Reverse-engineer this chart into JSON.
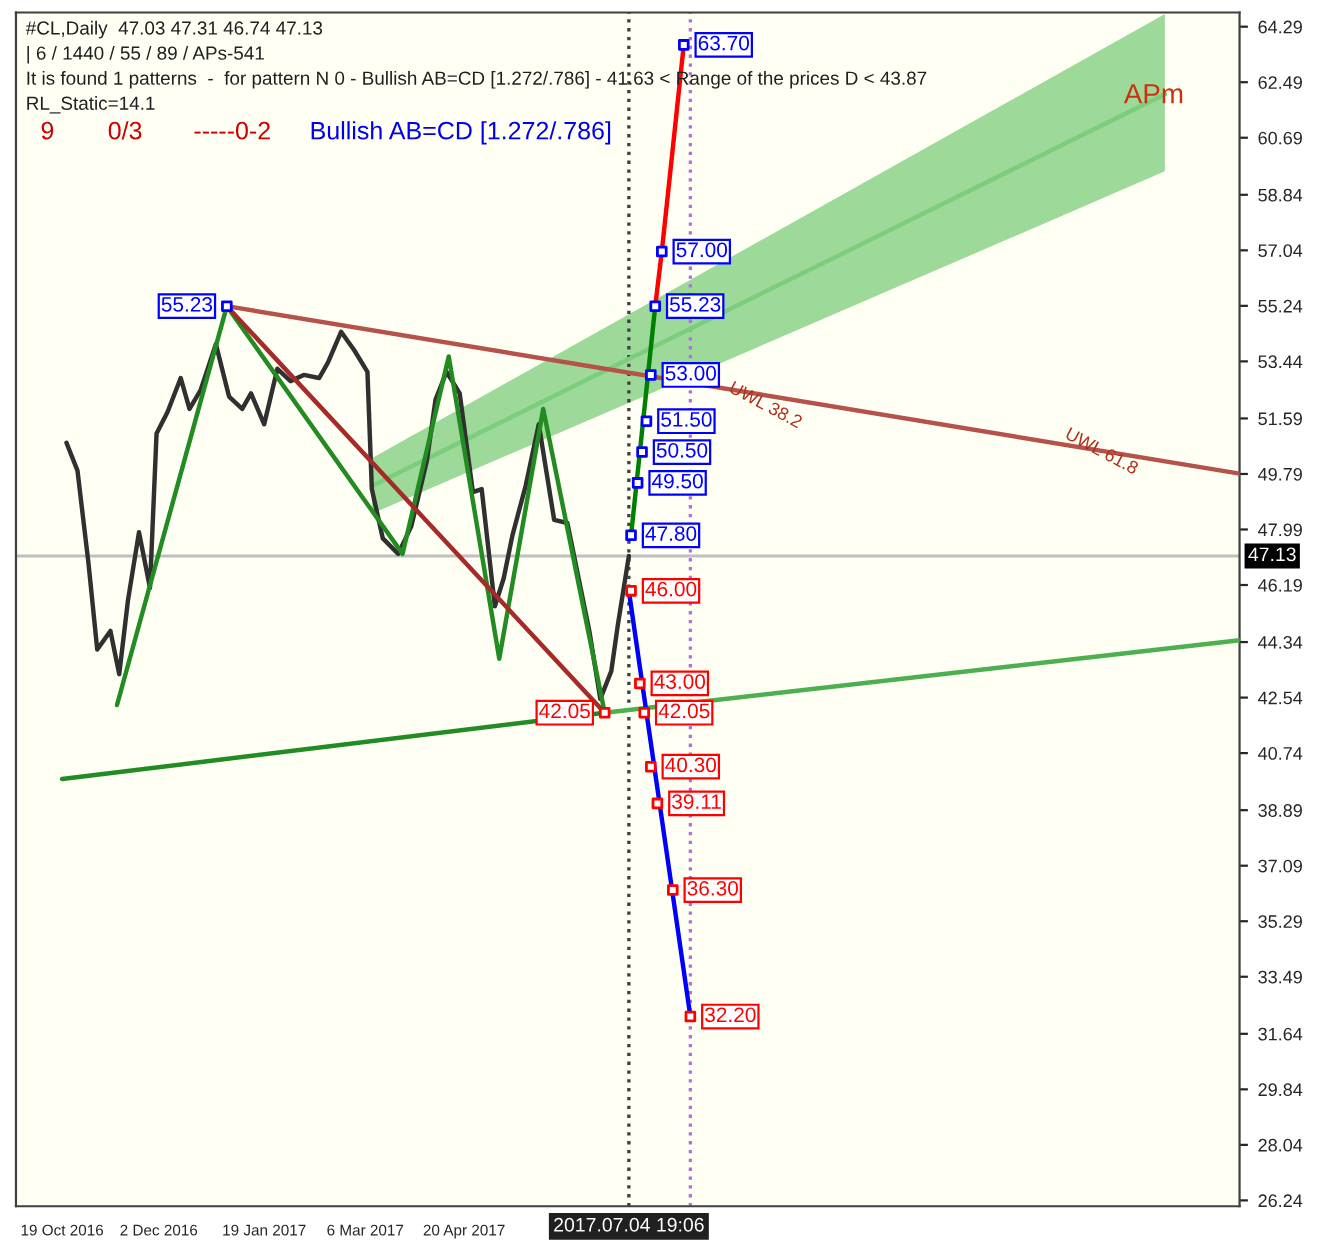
{
  "chart_data": {
    "type": "line",
    "annotations": [
      "#CL,Daily  47.03 47.31 46.74 47.13",
      "| 6 / 1440 / 55 / 89 / APs-541",
      "It is found 1 patterns  -  for pattern N 0 - Bullish AB=CD [1.272/.786] - 41.63 < Range of the prices D < 43.87",
      "RL_Static=14.1",
      "9",
      "0/3",
      "-----0-2",
      "Bullish AB=CD [1.272/.786]",
      "APm",
      {
        "text": "UWL 38.2",
        "x": "2017-09-04",
        "y": 52.0
      },
      {
        "text": "UWL 61.8",
        "x": "2018-02-04",
        "y": 50.5
      }
    ],
    "xlim": [
      "2016-09-28",
      "2018-04-08"
    ],
    "xticks": [
      {
        "value": "2016-10-19",
        "label": "19 Oct 2016"
      },
      {
        "value": "2016-12-02",
        "label": "2 Dec 2016"
      },
      {
        "value": "2017-01-19",
        "label": "19 Jan 2017"
      },
      {
        "value": "2017-03-06",
        "label": "6 Mar 2017"
      },
      {
        "value": "2017-04-20",
        "label": "20 Apr 2017"
      }
    ],
    "ylim": [
      26.05,
      64.75
    ],
    "yticks": [
      26.24,
      28.04,
      29.84,
      31.64,
      33.49,
      35.29,
      37.09,
      38.89,
      40.74,
      42.54,
      44.34,
      46.19,
      47.99,
      49.79,
      51.59,
      53.44,
      55.24,
      57.04,
      58.84,
      60.69,
      62.49,
      64.29
    ],
    "grid": false,
    "marker": "none",
    "line_style": "solid",
    "ref_lines": [
      {
        "axis": "y",
        "value": 47.13,
        "label": "47.13",
        "color": "#c0c0c0",
        "line_style": "solid"
      },
      {
        "axis": "x",
        "value": "2017-07-04",
        "label": "2017.07.04 19:06",
        "color": "#404040",
        "line_style": "dotted"
      },
      {
        "axis": "x",
        "value": "2017-08-01",
        "color": "#b070e0",
        "line_style": "dotted"
      }
    ],
    "series": [
      {
        "color": "#7ccd7c",
        "x": [
          "2017-03-09",
          "2018-03-05"
        ],
        "values": [
          49.4,
          62.1
        ],
        "lower": [
          48.5,
          59.6
        ],
        "upper": [
          50.3,
          64.7
        ]
      },
      {
        "color": "#303030",
        "x": [
          "2016-10-21",
          "2016-10-26",
          "2016-10-31",
          "2016-11-04",
          "2016-11-10",
          "2016-11-14",
          "2016-11-18",
          "2016-11-23",
          "2016-11-28",
          "2016-12-01",
          "2016-12-06",
          "2016-12-12",
          "2016-12-16",
          "2016-12-21",
          "2016-12-28",
          "2017-01-03",
          "2017-01-09",
          "2017-01-13",
          "2017-01-19",
          "2017-01-25",
          "2017-01-31",
          "2017-02-06",
          "2017-02-13",
          "2017-02-17",
          "2017-02-23",
          "2017-03-01",
          "2017-03-07",
          "2017-03-09",
          "2017-03-14",
          "2017-03-21",
          "2017-03-27",
          "2017-04-03",
          "2017-04-07",
          "2017-04-12",
          "2017-04-18",
          "2017-04-24",
          "2017-04-28",
          "2017-05-04",
          "2017-05-08",
          "2017-05-12",
          "2017-05-18",
          "2017-05-24",
          "2017-05-31",
          "2017-06-06",
          "2017-06-12",
          "2017-06-16",
          "2017-06-21",
          "2017-06-26",
          "2017-06-29",
          "2017-07-04"
        ],
        "values": [
          50.8,
          49.9,
          46.9,
          44.1,
          44.7,
          43.3,
          45.7,
          47.9,
          46.1,
          51.1,
          51.8,
          52.9,
          51.9,
          52.5,
          54.0,
          52.3,
          51.9,
          52.4,
          51.4,
          53.2,
          52.8,
          53.0,
          52.9,
          53.4,
          54.4,
          53.8,
          53.1,
          49.3,
          47.7,
          47.2,
          48.1,
          50.2,
          52.2,
          53.1,
          52.4,
          49.2,
          49.3,
          45.5,
          46.4,
          47.8,
          49.4,
          51.4,
          48.3,
          48.2,
          46.1,
          44.7,
          42.5,
          43.4,
          44.9,
          47.13
        ]
      },
      {
        "color": "#228b22",
        "x": [
          "2016-11-13",
          "2017-01-02",
          "2017-03-23",
          "2017-04-13",
          "2017-05-06",
          "2017-05-26",
          "2017-06-23"
        ],
        "values": [
          42.3,
          55.23,
          47.2,
          53.6,
          43.8,
          51.9,
          42.05
        ]
      },
      {
        "color": "#a52a2a",
        "x": [
          "2017-01-02",
          "2017-06-23"
        ],
        "values": [
          55.23,
          42.05
        ]
      },
      {
        "color": "#b5524a",
        "x": [
          "2017-01-02",
          "2018-04-08"
        ],
        "values": [
          55.23,
          49.8
        ]
      },
      {
        "color": "#228b22",
        "x": [
          "2016-10-19",
          "2017-06-23"
        ],
        "values": [
          39.9,
          42.05
        ]
      },
      {
        "color": "#4caf50",
        "x": [
          "2017-06-23",
          "2018-04-08"
        ],
        "values": [
          42.05,
          44.4
        ]
      },
      {
        "color": "#008000",
        "x": [
          "2017-07-05",
          "2017-07-16"
        ],
        "values": [
          47.8,
          55.23
        ]
      },
      {
        "color": "#ff0000",
        "x": [
          "2017-07-16",
          "2017-07-19",
          "2017-07-29"
        ],
        "values": [
          55.23,
          57.0,
          63.7
        ]
      },
      {
        "color": "#0000ff",
        "x": [
          "2017-07-04",
          "2017-08-01"
        ],
        "values": [
          46.0,
          32.2
        ]
      },
      {
        "type": "scatter",
        "color": "#0000ff",
        "marker": "square",
        "x": [
          "2017-01-02",
          "2017-07-29",
          "2017-07-19",
          "2017-07-16",
          "2017-07-14",
          "2017-07-12",
          "2017-07-10",
          "2017-07-08",
          "2017-07-05"
        ],
        "values": [
          55.23,
          63.7,
          57.0,
          55.23,
          53.0,
          51.5,
          50.5,
          49.5,
          47.8
        ],
        "value_labels": [
          "55.23",
          "63.70",
          "57.00",
          "55.23",
          "53.00",
          "51.50",
          "50.50",
          "49.50",
          "47.80"
        ]
      },
      {
        "type": "scatter",
        "color": "#ff0000",
        "marker": "square",
        "x": [
          "2017-06-23",
          "2017-07-05",
          "2017-07-09",
          "2017-07-11",
          "2017-07-14",
          "2017-07-17",
          "2017-07-24",
          "2017-08-01"
        ],
        "values": [
          42.05,
          46.0,
          43.0,
          42.05,
          40.3,
          39.11,
          36.3,
          32.2
        ],
        "value_labels": [
          "42.05",
          "46.00",
          "43.00",
          "42.05",
          "40.30",
          "39.11",
          "36.30",
          "32.20"
        ]
      }
    ]
  }
}
